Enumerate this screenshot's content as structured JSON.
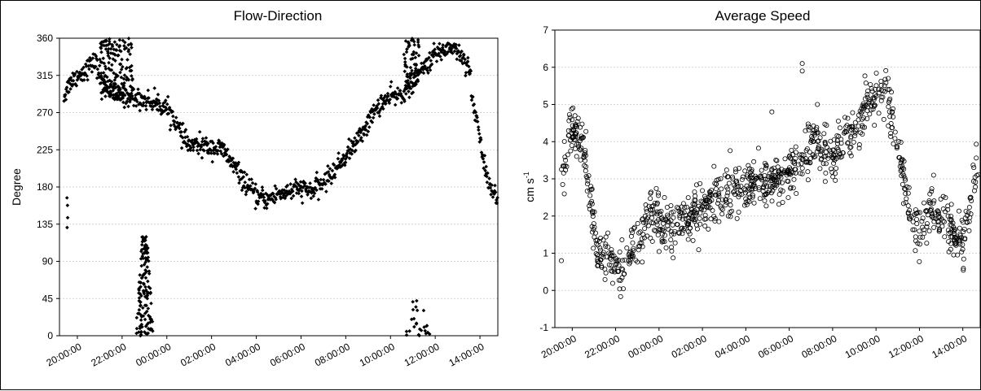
{
  "chart_data": [
    {
      "type": "scatter",
      "title": "Flow-Direction",
      "ylabel": "Degree",
      "xlabel": "",
      "ylim": [
        0,
        360
      ],
      "yticks": [
        "0",
        "45",
        "90",
        "135",
        "180",
        "225",
        "270",
        "315",
        "360"
      ],
      "xticks": [
        "20:00:00",
        "22:00:00",
        "00:00:00",
        "02:00:00",
        "04:00:00",
        "06:00:00",
        "08:00:00",
        "10:00:00",
        "12:00:00",
        "14:00:00"
      ],
      "xlim_hours": [
        19.2,
        38.8
      ],
      "grid": "horizontal",
      "marker": "filled-diamond",
      "series": [
        {
          "trend": {
            "x": [
              19.4,
              19.7,
              20.2,
              20.8,
              21.0,
              21.5,
              22.0,
              22.5,
              23.0,
              23.5,
              24.0,
              24.3,
              24.6,
              25.0,
              25.5,
              26.0,
              26.5,
              27.0,
              27.5,
              28.0,
              28.5,
              29.0,
              29.5,
              30.0,
              30.5,
              31.0,
              31.5,
              32.0,
              32.5,
              33.0,
              33.5,
              34.0,
              34.5,
              35.0,
              35.5,
              36.0,
              36.5,
              36.8,
              37.2,
              37.6,
              38.0,
              38.4,
              38.8
            ],
            "y": [
              290,
              308,
              318,
              332,
              315,
              295,
              290,
              288,
              285,
              282,
              275,
              265,
              245,
              230,
              230,
              228,
              225,
              205,
              185,
              168,
              165,
              172,
              175,
              178,
              175,
              185,
              200,
              218,
              235,
              258,
              280,
              288,
              292,
              305,
              325,
              340,
              348,
              350,
              338,
              322,
              305,
              285,
              275
            ]
          },
          "trend2": {
            "x": [
              37.6,
              37.8,
              38.0,
              38.2,
              38.4,
              38.6,
              38.8
            ],
            "y": [
              285,
              270,
              240,
              205,
              185,
              172,
              160
            ]
          },
          "band": 12,
          "scatter_zones": [
            {
              "x": [
                21.0,
                22.5
              ],
              "y": [
                285,
                360
              ],
              "count": 150
            },
            {
              "x": [
                34.6,
                35.3
              ],
              "y": [
                300,
                360
              ],
              "count": 60
            }
          ],
          "low_clusters": [
            {
              "x": [
                22.6,
                23.4
              ],
              "y": [
                0,
                120
              ],
              "count": 140
            },
            {
              "x": [
                34.6,
                35.8
              ],
              "y": [
                0,
                45
              ],
              "count": 25
            },
            {
              "x": [
                19.5,
                19.6
              ],
              "y": [
                130,
                190
              ],
              "count": 4
            }
          ]
        }
      ]
    },
    {
      "type": "scatter",
      "title": "Average Speed",
      "ylabel": "cm s",
      "ylabel_sup": "-1",
      "xlabel": "",
      "ylim": [
        -1,
        7
      ],
      "yticks": [
        "-1",
        "0",
        "1",
        "2",
        "3",
        "4",
        "5",
        "6",
        "7"
      ],
      "xticks": [
        "20:00:00",
        "22:00:00",
        "00:00:00",
        "02:00:00",
        "04:00:00",
        "06:00:00",
        "08:00:00",
        "10:00:00",
        "12:00:00",
        "14:00:00"
      ],
      "xlim_hours": [
        19.2,
        38.8
      ],
      "grid": "horizontal",
      "marker": "open-circle",
      "series": [
        {
          "trend": {
            "x": [
              19.5,
              19.8,
              20.0,
              20.3,
              20.6,
              20.9,
              21.1,
              21.4,
              21.7,
              22.0,
              22.3,
              22.6,
              23.0,
              23.4,
              23.8,
              24.2,
              24.6,
              25.0,
              25.5,
              26.0,
              26.5,
              27.0,
              27.5,
              28.0,
              28.5,
              29.0,
              29.5,
              30.0,
              30.5,
              31.0,
              31.5,
              32.0,
              32.5,
              33.0,
              33.5,
              34.0,
              34.3,
              34.6,
              34.9,
              35.2,
              35.5,
              36.0,
              36.5,
              37.0,
              37.5,
              38.0,
              38.5,
              38.8
            ],
            "y": [
              3.0,
              4.0,
              4.3,
              4.1,
              3.6,
              2.2,
              1.2,
              0.8,
              1.0,
              0.7,
              0.6,
              0.9,
              1.3,
              1.9,
              2.2,
              1.6,
              1.6,
              1.8,
              2.0,
              2.2,
              2.4,
              2.6,
              2.7,
              2.8,
              2.9,
              3.0,
              3.1,
              3.2,
              3.4,
              3.9,
              3.8,
              3.6,
              3.9,
              4.3,
              4.8,
              5.3,
              5.6,
              5.0,
              4.2,
              3.3,
              2.0,
              1.4,
              2.2,
              2.0,
              1.5,
              1.2,
              2.8,
              3.8
            ]
          },
          "band": 0.55,
          "count": 1100,
          "outliers": [
            {
              "x": 30.6,
              "y": 6.1
            },
            {
              "x": 30.6,
              "y": 5.9
            },
            {
              "x": 29.2,
              "y": 4.8
            },
            {
              "x": 19.5,
              "y": 0.8
            }
          ]
        }
      ]
    }
  ]
}
